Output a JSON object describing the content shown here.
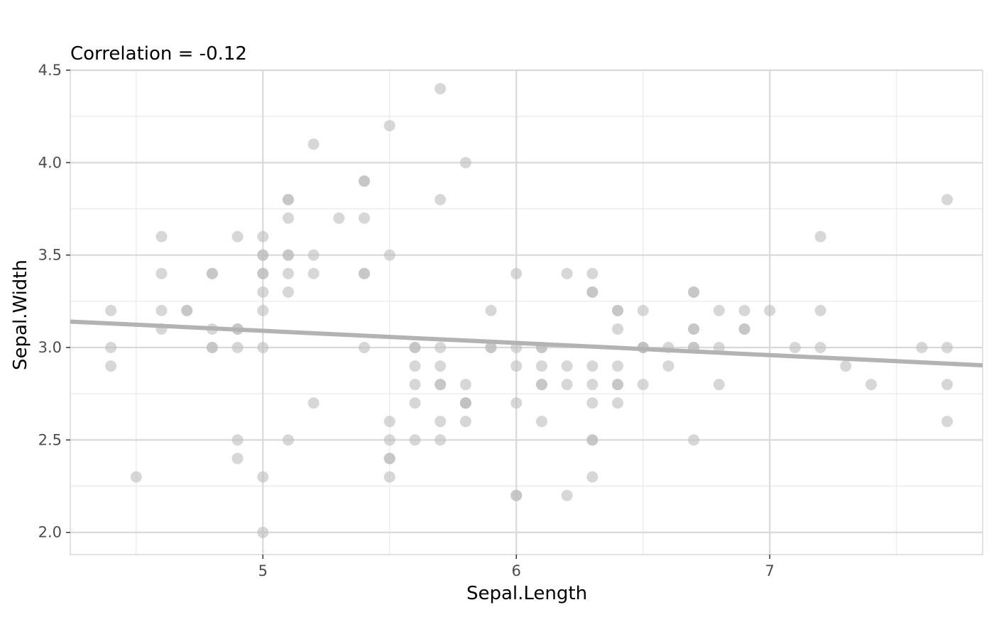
{
  "chart_data": {
    "type": "scatter",
    "title": "Correlation = -0.12",
    "xlabel": "Sepal.Length",
    "ylabel": "Sepal.Width",
    "xlim": [
      4.24,
      7.84
    ],
    "ylim": [
      1.88,
      4.5
    ],
    "x_ticks": [
      5,
      6,
      7
    ],
    "x_tick_labels": [
      "5",
      "6",
      "7"
    ],
    "y_ticks": [
      2.0,
      2.5,
      3.0,
      3.5,
      4.0,
      4.5
    ],
    "y_tick_labels": [
      "2.0",
      "2.5",
      "3.0",
      "3.5",
      "4.0",
      "4.5"
    ],
    "grid": true,
    "point_color": "#bdbdbd",
    "line_color": "#b3b3b3",
    "regression_line": {
      "slope": -0.0657,
      "intercept": 3.4189
    },
    "points": [
      [
        4.4,
        3.2
      ],
      [
        4.4,
        3.0
      ],
      [
        4.4,
        2.9
      ],
      [
        4.5,
        2.3
      ],
      [
        4.6,
        3.6
      ],
      [
        4.6,
        3.4
      ],
      [
        4.6,
        3.2
      ],
      [
        4.6,
        3.1
      ],
      [
        4.7,
        3.2
      ],
      [
        4.7,
        3.2
      ],
      [
        4.8,
        3.4
      ],
      [
        4.8,
        3.4
      ],
      [
        4.8,
        3.1
      ],
      [
        4.8,
        3.0
      ],
      [
        4.8,
        3.0
      ],
      [
        4.9,
        3.6
      ],
      [
        4.9,
        3.1
      ],
      [
        4.9,
        3.1
      ],
      [
        4.9,
        3.0
      ],
      [
        4.9,
        2.5
      ],
      [
        4.9,
        2.4
      ],
      [
        5.0,
        3.6
      ],
      [
        5.0,
        3.5
      ],
      [
        5.0,
        3.5
      ],
      [
        5.0,
        3.4
      ],
      [
        5.0,
        3.4
      ],
      [
        5.0,
        3.3
      ],
      [
        5.0,
        3.2
      ],
      [
        5.0,
        3.0
      ],
      [
        5.0,
        2.3
      ],
      [
        5.0,
        2.0
      ],
      [
        5.1,
        3.8
      ],
      [
        5.1,
        3.8
      ],
      [
        5.1,
        3.7
      ],
      [
        5.1,
        3.5
      ],
      [
        5.1,
        3.5
      ],
      [
        5.1,
        3.4
      ],
      [
        5.1,
        3.3
      ],
      [
        5.1,
        2.5
      ],
      [
        5.2,
        4.1
      ],
      [
        5.2,
        3.5
      ],
      [
        5.2,
        3.4
      ],
      [
        5.2,
        2.7
      ],
      [
        5.3,
        3.7
      ],
      [
        5.4,
        3.9
      ],
      [
        5.4,
        3.9
      ],
      [
        5.4,
        3.7
      ],
      [
        5.4,
        3.4
      ],
      [
        5.4,
        3.4
      ],
      [
        5.4,
        3.0
      ],
      [
        5.5,
        4.2
      ],
      [
        5.5,
        3.5
      ],
      [
        5.5,
        2.6
      ],
      [
        5.5,
        2.5
      ],
      [
        5.5,
        2.4
      ],
      [
        5.5,
        2.4
      ],
      [
        5.5,
        2.3
      ],
      [
        5.6,
        3.0
      ],
      [
        5.6,
        3.0
      ],
      [
        5.6,
        2.9
      ],
      [
        5.6,
        2.8
      ],
      [
        5.6,
        2.7
      ],
      [
        5.6,
        2.5
      ],
      [
        5.7,
        4.4
      ],
      [
        5.7,
        3.8
      ],
      [
        5.7,
        3.0
      ],
      [
        5.7,
        2.9
      ],
      [
        5.7,
        2.8
      ],
      [
        5.7,
        2.8
      ],
      [
        5.7,
        2.6
      ],
      [
        5.7,
        2.5
      ],
      [
        5.8,
        4.0
      ],
      [
        5.8,
        2.8
      ],
      [
        5.8,
        2.7
      ],
      [
        5.8,
        2.7
      ],
      [
        5.8,
        2.7
      ],
      [
        5.8,
        2.6
      ],
      [
        5.9,
        3.2
      ],
      [
        5.9,
        3.0
      ],
      [
        5.9,
        3.0
      ],
      [
        6.0,
        3.4
      ],
      [
        6.0,
        3.0
      ],
      [
        6.0,
        2.9
      ],
      [
        6.0,
        2.7
      ],
      [
        6.0,
        2.2
      ],
      [
        6.0,
        2.2
      ],
      [
        6.1,
        3.0
      ],
      [
        6.1,
        3.0
      ],
      [
        6.1,
        2.9
      ],
      [
        6.1,
        2.8
      ],
      [
        6.1,
        2.8
      ],
      [
        6.1,
        2.6
      ],
      [
        6.2,
        3.4
      ],
      [
        6.2,
        2.9
      ],
      [
        6.2,
        2.8
      ],
      [
        6.2,
        2.2
      ],
      [
        6.3,
        3.4
      ],
      [
        6.3,
        3.3
      ],
      [
        6.3,
        3.3
      ],
      [
        6.3,
        2.9
      ],
      [
        6.3,
        2.8
      ],
      [
        6.3,
        2.7
      ],
      [
        6.3,
        2.5
      ],
      [
        6.3,
        2.5
      ],
      [
        6.3,
        2.3
      ],
      [
        6.4,
        3.2
      ],
      [
        6.4,
        3.2
      ],
      [
        6.4,
        3.1
      ],
      [
        6.4,
        2.9
      ],
      [
        6.4,
        2.8
      ],
      [
        6.4,
        2.8
      ],
      [
        6.4,
        2.7
      ],
      [
        6.5,
        3.2
      ],
      [
        6.5,
        3.0
      ],
      [
        6.5,
        3.0
      ],
      [
        6.5,
        3.0
      ],
      [
        6.5,
        2.8
      ],
      [
        6.6,
        3.0
      ],
      [
        6.6,
        2.9
      ],
      [
        6.7,
        3.3
      ],
      [
        6.7,
        3.3
      ],
      [
        6.7,
        3.1
      ],
      [
        6.7,
        3.1
      ],
      [
        6.7,
        3.0
      ],
      [
        6.7,
        3.0
      ],
      [
        6.7,
        2.5
      ],
      [
        6.8,
        3.2
      ],
      [
        6.8,
        3.0
      ],
      [
        6.8,
        2.8
      ],
      [
        6.9,
        3.2
      ],
      [
        6.9,
        3.1
      ],
      [
        6.9,
        3.1
      ],
      [
        7.0,
        3.2
      ],
      [
        7.1,
        3.0
      ],
      [
        7.2,
        3.6
      ],
      [
        7.2,
        3.2
      ],
      [
        7.2,
        3.0
      ],
      [
        7.3,
        2.9
      ],
      [
        7.4,
        2.8
      ],
      [
        7.6,
        3.0
      ],
      [
        7.7,
        3.8
      ],
      [
        7.7,
        3.0
      ],
      [
        7.7,
        2.8
      ],
      [
        7.7,
        2.6
      ]
    ]
  }
}
